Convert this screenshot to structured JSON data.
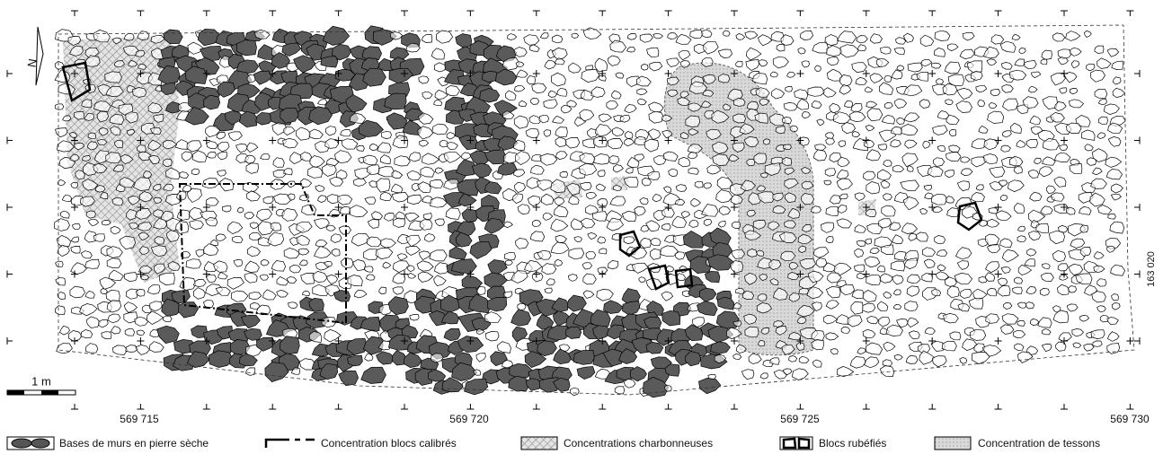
{
  "north": "N",
  "scale_bar": "1 m",
  "x_coordinates": [
    "569 715",
    "569 720",
    "569 725",
    "569 730"
  ],
  "y_coordinate": "163 020",
  "legend": [
    "Bases de murs en pierre sèche",
    "Concentration blocs calibrés",
    "Concentrations charbonneuses",
    "Blocs rubéfiés",
    "Concentration de tessons"
  ]
}
